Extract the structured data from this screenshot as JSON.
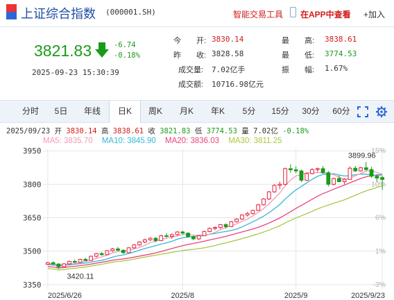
{
  "header": {
    "title": "上证综合指数",
    "code": "(000001.SH)",
    "smart_trading": "智能交易工具",
    "app_view": "在APP中查看",
    "add_label": "+加入"
  },
  "quote": {
    "price": "3821.83",
    "change": "-6.74",
    "change_pct": "-0.18%",
    "datetime": "2025-09-23 15:30:39",
    "open_label": "今　　开:",
    "open": "3830.14",
    "prev_close_label": "昨　　收:",
    "prev_close": "3828.58",
    "volume_label": "成交量:",
    "volume": "7.02亿手",
    "amount_label": "成交额:",
    "amount": "10716.98亿元",
    "high_label": "最　　高:",
    "high": "3838.61",
    "low_label": "最　　低:",
    "low": "3774.53",
    "amplitude_label": "振　　幅:",
    "amplitude": "1.67%"
  },
  "tabs": [
    "分时",
    "5日",
    "年线",
    "日K",
    "周K",
    "月K",
    "年K",
    "5分",
    "15分",
    "30分",
    "60分"
  ],
  "active_tab": "日K",
  "summary": {
    "date": "2025/09/23",
    "open_label": "开",
    "open": "3830.14",
    "high_label": "高",
    "high": "3838.61",
    "close_label": "收",
    "close": "3821.83",
    "low_label": "低",
    "low": "3774.53",
    "vol_label": "量",
    "vol": "7.02亿",
    "pct": "-0.18%"
  },
  "ma_legend": {
    "ma5": "MA5: 3835.70",
    "ma10": "MA10: 3845.90",
    "ma20": "MA20: 3836.03",
    "ma30": "MA30: 3811.25"
  },
  "colors": {
    "up": "#e2233e",
    "down": "#1a9a1a",
    "ma5": "#f29bb4",
    "ma10": "#37b6d6",
    "ma20": "#e8447a",
    "ma30": "#a9c842",
    "brand_blue": "#1e4fa6",
    "red_text": "#d01b1b"
  },
  "icons": [
    "flag-icon",
    "phone-icon",
    "down-arrow-icon",
    "fullscreen-icon",
    "settings-icon"
  ],
  "chart_data": {
    "type": "candlestick",
    "y_ticks": [
      "3950",
      "3800",
      "3650",
      "3500",
      "3350"
    ],
    "pct_ticks": [
      "15%",
      "10%",
      "6%",
      "1%",
      "-3%"
    ],
    "x_ticks": [
      "2025/6/26",
      "2025/8",
      "2025/9",
      "2025/9/23"
    ],
    "ylim": [
      3340,
      3960
    ],
    "max_label": "3899.96",
    "min_label": "3420.11",
    "candles": [
      [
        3441,
        3452,
        3438,
        3448
      ],
      [
        3448,
        3455,
        3440,
        3442
      ],
      [
        3442,
        3447,
        3420,
        3430
      ],
      [
        3430,
        3446,
        3428,
        3443
      ],
      [
        3443,
        3458,
        3440,
        3454
      ],
      [
        3454,
        3462,
        3446,
        3450
      ],
      [
        3450,
        3466,
        3448,
        3463
      ],
      [
        3463,
        3470,
        3455,
        3458
      ],
      [
        3458,
        3480,
        3456,
        3477
      ],
      [
        3477,
        3492,
        3470,
        3489
      ],
      [
        3489,
        3496,
        3480,
        3484
      ],
      [
        3484,
        3505,
        3482,
        3502
      ],
      [
        3502,
        3515,
        3496,
        3510
      ],
      [
        3510,
        3519,
        3500,
        3504
      ],
      [
        3504,
        3508,
        3488,
        3493
      ],
      [
        3493,
        3518,
        3492,
        3515
      ],
      [
        3515,
        3532,
        3510,
        3528
      ],
      [
        3528,
        3545,
        3522,
        3541
      ],
      [
        3541,
        3556,
        3535,
        3551
      ],
      [
        3551,
        3563,
        3545,
        3558
      ],
      [
        3558,
        3562,
        3540,
        3547
      ],
      [
        3547,
        3573,
        3545,
        3569
      ],
      [
        3569,
        3580,
        3561,
        3566
      ],
      [
        3566,
        3579,
        3555,
        3574
      ],
      [
        3574,
        3590,
        3570,
        3586
      ],
      [
        3586,
        3592,
        3575,
        3581
      ],
      [
        3581,
        3584,
        3560,
        3565
      ],
      [
        3565,
        3570,
        3550,
        3555
      ],
      [
        3555,
        3572,
        3550,
        3569
      ],
      [
        3569,
        3592,
        3567,
        3588
      ],
      [
        3588,
        3606,
        3584,
        3602
      ],
      [
        3602,
        3612,
        3594,
        3606
      ],
      [
        3606,
        3622,
        3600,
        3619
      ],
      [
        3619,
        3625,
        3602,
        3610
      ],
      [
        3610,
        3635,
        3608,
        3632
      ],
      [
        3632,
        3648,
        3628,
        3644
      ],
      [
        3644,
        3666,
        3640,
        3662
      ],
      [
        3662,
        3676,
        3655,
        3669
      ],
      [
        3669,
        3686,
        3664,
        3683
      ],
      [
        3683,
        3712,
        3680,
        3708
      ],
      [
        3708,
        3738,
        3704,
        3734
      ],
      [
        3734,
        3770,
        3730,
        3766
      ],
      [
        3766,
        3800,
        3762,
        3795
      ],
      [
        3795,
        3812,
        3778,
        3800
      ],
      [
        3800,
        3875,
        3795,
        3870
      ],
      [
        3870,
        3890,
        3852,
        3865
      ],
      [
        3865,
        3880,
        3850,
        3860
      ],
      [
        3860,
        3866,
        3810,
        3818
      ],
      [
        3818,
        3852,
        3815,
        3848
      ],
      [
        3848,
        3872,
        3844,
        3866
      ],
      [
        3866,
        3875,
        3855,
        3870
      ],
      [
        3870,
        3882,
        3848,
        3852
      ],
      [
        3852,
        3860,
        3790,
        3800
      ],
      [
        3800,
        3830,
        3795,
        3826
      ],
      [
        3826,
        3840,
        3808,
        3812
      ],
      [
        3812,
        3828,
        3800,
        3822
      ],
      [
        3822,
        3880,
        3820,
        3872
      ],
      [
        3872,
        3882,
        3855,
        3860
      ],
      [
        3860,
        3878,
        3856,
        3874
      ],
      [
        3874,
        3900,
        3860,
        3866
      ],
      [
        3866,
        3878,
        3828,
        3836
      ],
      [
        3836,
        3845,
        3812,
        3828
      ],
      [
        3830.14,
        3838.61,
        3774.53,
        3821.83
      ]
    ]
  }
}
